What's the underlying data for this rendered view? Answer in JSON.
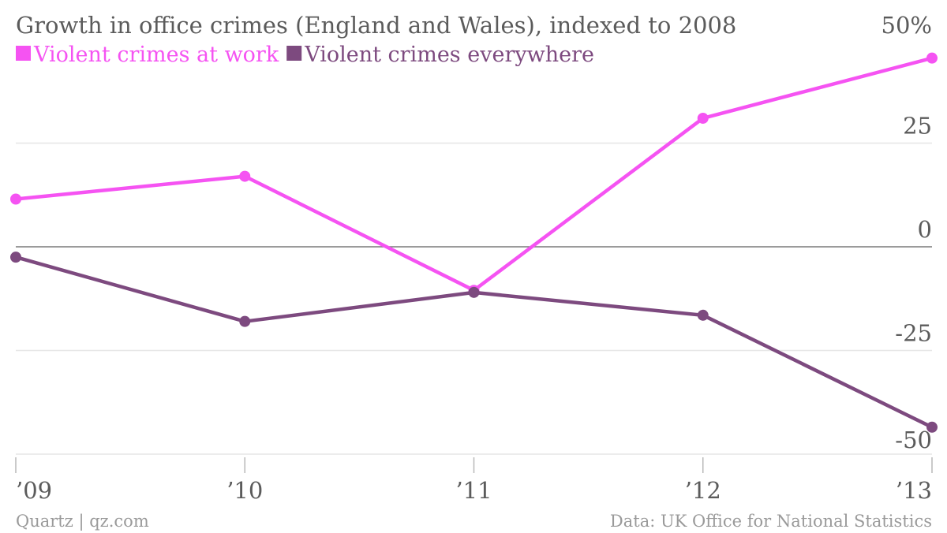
{
  "chart_data": {
    "type": "line",
    "title": "Growth in office crimes (England and Wales), indexed to 2008",
    "categories": [
      "’09",
      "’10",
      "’11",
      "’12",
      "’13"
    ],
    "series": [
      {
        "name": "Violent crimes at work",
        "color": "#f553f2",
        "values": [
          11.5,
          17,
          -10.5,
          31,
          45.5
        ]
      },
      {
        "name": "Violent crimes everywhere",
        "color": "#7d4a7f",
        "values": [
          -2.5,
          -18,
          -11,
          -16.5,
          -43.5
        ]
      }
    ],
    "ylim": [
      -50,
      50
    ],
    "yticks": [
      50,
      25,
      0,
      -25,
      -50
    ],
    "ytick_labels": [
      "50%",
      "25",
      "0",
      "-25",
      "-50"
    ],
    "grid": true,
    "legend_position": "top-left",
    "source": "Data: UK Office for National Statistics",
    "credit": "Quartz | qz.com"
  }
}
